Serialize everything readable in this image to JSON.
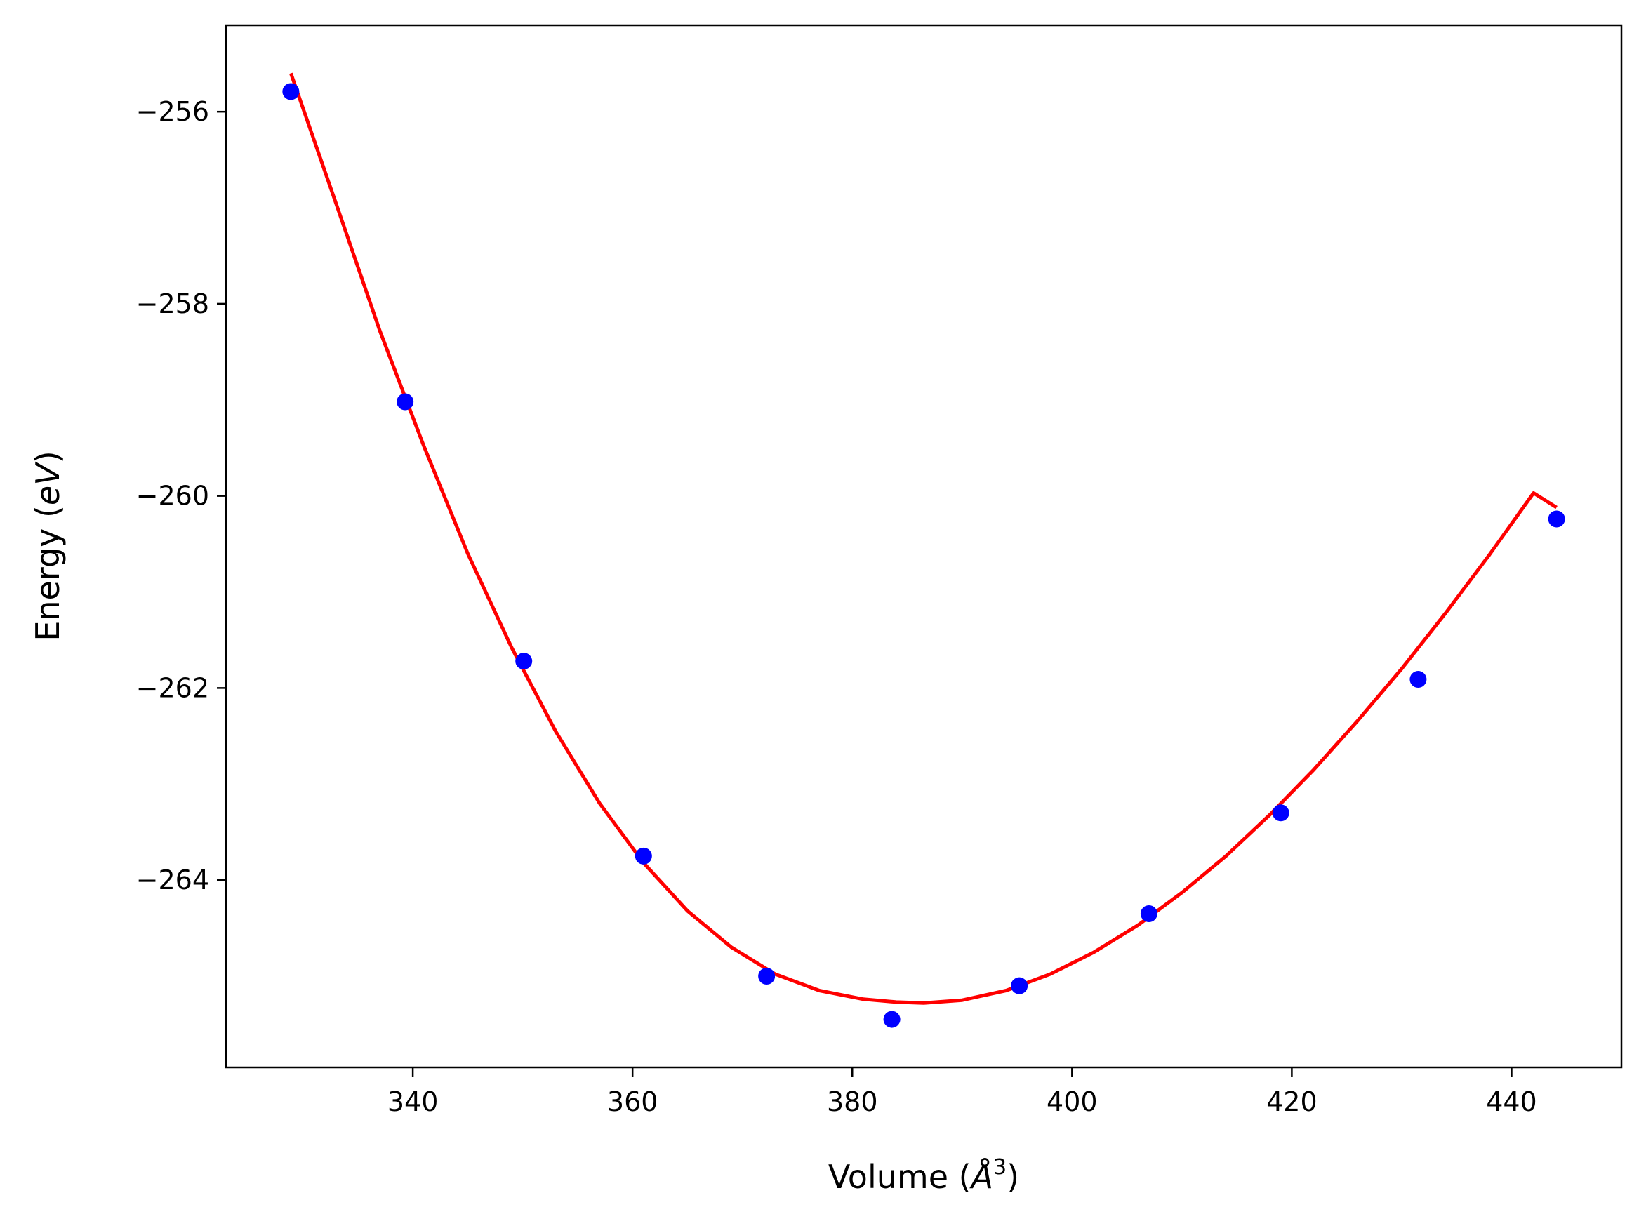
{
  "chart_data": {
    "type": "scatter",
    "title": "",
    "xlabel_parts": [
      "Volume (",
      "Å",
      "3",
      ")"
    ],
    "ylabel_parts": [
      "Energy (",
      "eV",
      ")"
    ],
    "xlim": [
      323,
      450
    ],
    "ylim": [
      -265.95,
      -255.1
    ],
    "xticks": [
      340,
      360,
      380,
      400,
      420,
      440
    ],
    "xtick_labels": [
      "340",
      "360",
      "380",
      "400",
      "420",
      "440"
    ],
    "yticks": [
      -256,
      -258,
      -260,
      -262,
      -264
    ],
    "ytick_labels": [
      "−256",
      "−258",
      "−260",
      "−262",
      "−264"
    ],
    "grid": false,
    "legend": "none",
    "series": [
      {
        "kind": "points",
        "color": "#0000ff",
        "x": [
          328.9,
          339.3,
          350.1,
          361.0,
          372.2,
          383.6,
          395.2,
          407.0,
          419.0,
          431.5,
          444.1
        ],
        "y": [
          -255.79,
          -259.02,
          -261.72,
          -263.75,
          -265.0,
          -265.45,
          -265.1,
          -264.35,
          -263.3,
          -261.91,
          -260.24
        ]
      },
      {
        "kind": "line",
        "color": "#ff0000",
        "x": [
          328.9,
          333.0,
          337.0,
          341.0,
          345.0,
          349.0,
          353.0,
          357.0,
          361.0,
          365.0,
          369.0,
          373.0,
          377.0,
          381.0,
          384.0,
          386.5,
          390.0,
          394.0,
          398.0,
          402.0,
          406.0,
          410.0,
          414.0,
          418.0,
          422.0,
          426.0,
          430.0,
          434.0,
          438.0,
          442.0,
          444.1
        ],
        "y": [
          -255.6,
          -256.95,
          -258.28,
          -259.48,
          -260.6,
          -261.58,
          -262.45,
          -263.2,
          -263.82,
          -264.32,
          -264.7,
          -264.98,
          -265.15,
          -265.24,
          -265.27,
          -265.28,
          -265.25,
          -265.15,
          -264.98,
          -264.75,
          -264.47,
          -264.13,
          -263.75,
          -263.32,
          -262.85,
          -262.34,
          -261.8,
          -261.22,
          -260.61,
          -259.97,
          -260.12
        ]
      }
    ]
  }
}
